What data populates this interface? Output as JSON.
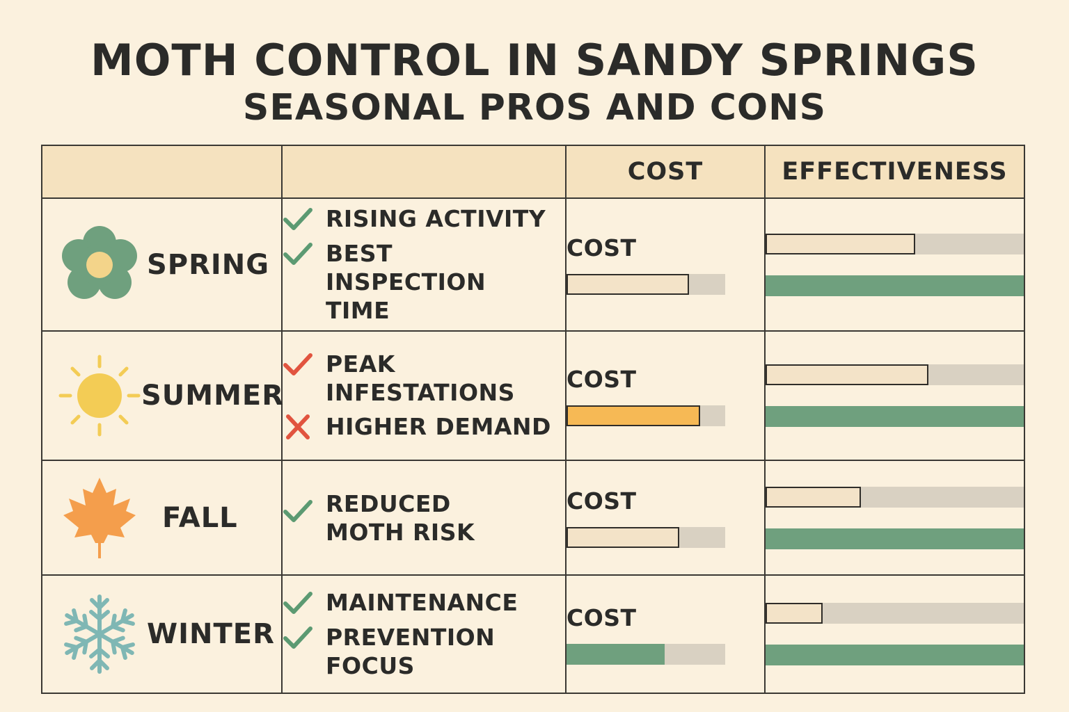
{
  "title": "MOTH CONTROL IN SANDY SPRINGS",
  "subtitle": "SEASONAL PROS AND CONS",
  "headers": [
    "",
    "",
    "COST",
    "EFFECTIVENESS"
  ],
  "colors": {
    "background": "#fbf1de",
    "header_bg": "#f5e2bf",
    "track": "#d9d1c2",
    "beige_fill": "#f3e3c8",
    "green": "#6fa07e",
    "orange": "#f6b955",
    "check_green": "#5c9a72",
    "check_red": "#e1543f"
  },
  "rows": [
    {
      "season": "SPRING",
      "icon": "flower-icon",
      "notes": [
        {
          "mark": "check",
          "mark_color": "green",
          "text": "RISING ACTIVITY"
        },
        {
          "mark": "check",
          "mark_color": "green",
          "text": "BEST INSPECTION TIME"
        }
      ],
      "cost_label": "COST",
      "cost_level": 0.77,
      "cost_color": "beige",
      "effectiveness_level": 0.58,
      "effectiveness_secondary_level": 1.0
    },
    {
      "season": "SUMMER",
      "icon": "sun-icon",
      "notes": [
        {
          "mark": "check",
          "mark_color": "red",
          "text": "PEAK INFESTATIONS"
        },
        {
          "mark": "cross",
          "mark_color": "red",
          "text": "HIGHER DEMAND"
        }
      ],
      "cost_label": "COST",
      "cost_level": 0.84,
      "cost_color": "orange",
      "effectiveness_level": 0.63,
      "effectiveness_secondary_level": 1.0
    },
    {
      "season": "FALL",
      "icon": "maple-leaf-icon",
      "notes": [
        {
          "mark": "check",
          "mark_color": "green",
          "text": "REDUCED MOTH RISK"
        }
      ],
      "cost_label": "COST",
      "cost_level": 0.71,
      "cost_color": "beige",
      "effectiveness_level": 0.37,
      "effectiveness_secondary_level": 1.0
    },
    {
      "season": "WINTER",
      "icon": "snowflake-icon",
      "notes": [
        {
          "mark": "check",
          "mark_color": "green",
          "text": "MAINTENANCE"
        },
        {
          "mark": "check",
          "mark_color": "green",
          "text": "PREVENTION FOCUS"
        }
      ],
      "cost_label": "COST",
      "cost_level": 0.62,
      "cost_color": "green",
      "effectiveness_level": 0.22,
      "effectiveness_secondary_level": 1.0
    }
  ]
}
